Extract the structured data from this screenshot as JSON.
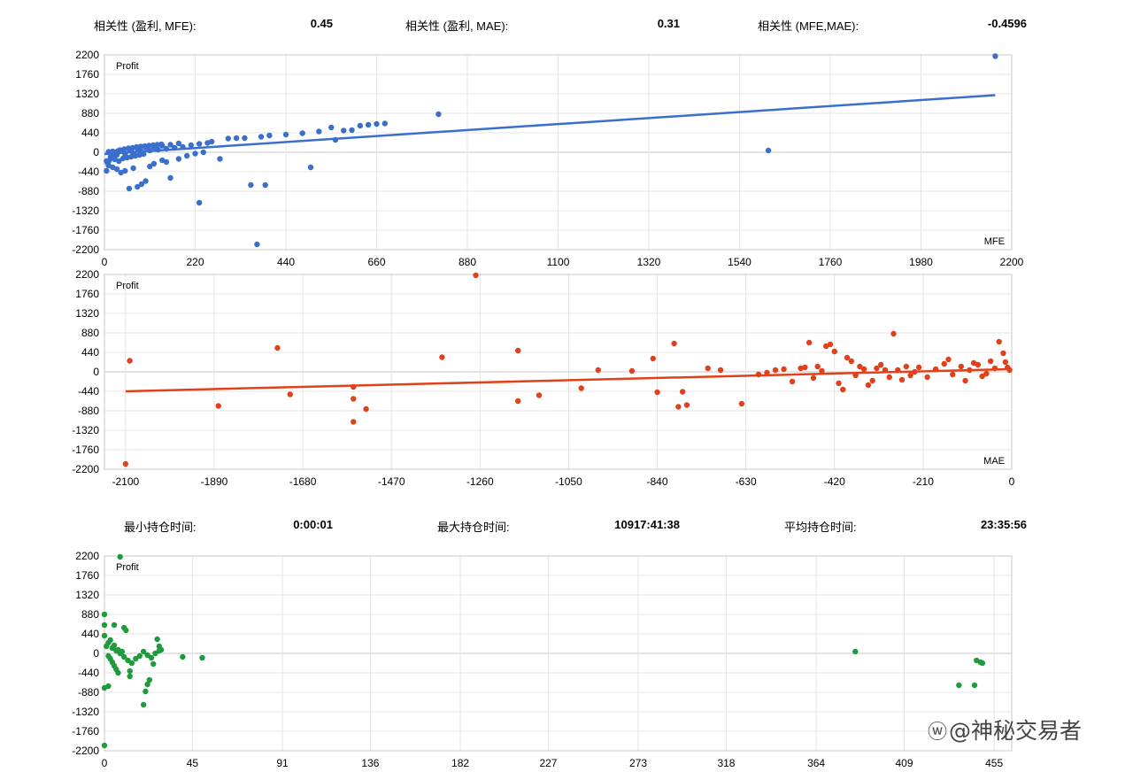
{
  "stats_top": [
    {
      "label": "相关性 (盈利, MFE):",
      "value": "0.45"
    },
    {
      "label": "相关性 (盈利, MAE):",
      "value": "0.31"
    },
    {
      "label": "相关性 (MFE,MAE):",
      "value": "-0.4596"
    }
  ],
  "stats_bottom": [
    {
      "label": "最小持仓时间:",
      "value": "0:00:01"
    },
    {
      "label": "最大持仓时间:",
      "value": "10917:41:38"
    },
    {
      "label": "平均持仓时间:",
      "value": "23:35:56"
    }
  ],
  "watermark": {
    "icon": "weibo-icon",
    "text": "@神秘交易者"
  },
  "chart_data": [
    {
      "type": "scatter",
      "ylabel": "Profit",
      "xlabel": "MFE",
      "color": "#3a6fcd",
      "xlim": [
        0,
        2200
      ],
      "ylim": [
        -2200,
        2200
      ],
      "x_ticks": [
        0,
        220,
        440,
        660,
        880,
        1100,
        1320,
        1540,
        1760,
        1980,
        2200
      ],
      "y_ticks": [
        2200,
        1760,
        1320,
        880,
        440,
        0,
        -440,
        -880,
        -1320,
        -1760,
        -2200
      ],
      "grid": true,
      "trendline": {
        "x": [
          0,
          2160
        ],
        "y": [
          -40,
          1290
        ]
      },
      "points": [
        [
          2160,
          2170
        ],
        [
          810,
          860
        ],
        [
          1610,
          40
        ],
        [
          370,
          -2080
        ],
        [
          230,
          -1140
        ],
        [
          355,
          -740
        ],
        [
          390,
          -740
        ],
        [
          500,
          -340
        ],
        [
          60,
          -820
        ],
        [
          80,
          -780
        ],
        [
          90,
          -720
        ],
        [
          100,
          -650
        ],
        [
          160,
          -580
        ],
        [
          40,
          -460
        ],
        [
          30,
          -380
        ],
        [
          20,
          -340
        ],
        [
          10,
          -300
        ],
        [
          5,
          -420
        ],
        [
          120,
          -260
        ],
        [
          150,
          -220
        ],
        [
          180,
          -150
        ],
        [
          140,
          -180
        ],
        [
          70,
          -360
        ],
        [
          110,
          -320
        ],
        [
          50,
          -420
        ],
        [
          200,
          -80
        ],
        [
          220,
          -30
        ],
        [
          240,
          0
        ],
        [
          280,
          -150
        ],
        [
          300,
          310
        ],
        [
          320,
          320
        ],
        [
          340,
          320
        ],
        [
          380,
          350
        ],
        [
          400,
          380
        ],
        [
          440,
          400
        ],
        [
          480,
          430
        ],
        [
          520,
          470
        ],
        [
          550,
          560
        ],
        [
          560,
          280
        ],
        [
          580,
          490
        ],
        [
          600,
          500
        ],
        [
          620,
          600
        ],
        [
          640,
          620
        ],
        [
          660,
          640
        ],
        [
          680,
          650
        ],
        [
          230,
          190
        ],
        [
          250,
          210
        ],
        [
          260,
          240
        ],
        [
          180,
          200
        ],
        [
          160,
          170
        ],
        [
          140,
          150
        ],
        [
          120,
          120
        ],
        [
          100,
          110
        ],
        [
          80,
          80
        ],
        [
          60,
          60
        ],
        [
          40,
          40
        ],
        [
          20,
          20
        ],
        [
          10,
          10
        ],
        [
          30,
          -60
        ],
        [
          50,
          -40
        ],
        [
          70,
          -20
        ],
        [
          90,
          20
        ],
        [
          110,
          40
        ],
        [
          130,
          60
        ],
        [
          150,
          80
        ],
        [
          170,
          100
        ],
        [
          190,
          120
        ],
        [
          210,
          160
        ],
        [
          15,
          -100
        ],
        [
          25,
          -160
        ],
        [
          35,
          -200
        ],
        [
          45,
          -140
        ],
        [
          55,
          -120
        ],
        [
          65,
          -100
        ],
        [
          75,
          -80
        ],
        [
          85,
          -60
        ],
        [
          95,
          -40
        ],
        [
          5,
          -200
        ],
        [
          8,
          -250
        ],
        [
          12,
          -180
        ],
        [
          18,
          -90
        ],
        [
          22,
          -50
        ],
        [
          28,
          0
        ],
        [
          33,
          30
        ],
        [
          38,
          50
        ],
        [
          48,
          70
        ],
        [
          58,
          90
        ],
        [
          68,
          100
        ],
        [
          78,
          120
        ],
        [
          88,
          130
        ],
        [
          98,
          140
        ],
        [
          108,
          150
        ],
        [
          118,
          160
        ],
        [
          128,
          170
        ],
        [
          138,
          180
        ]
      ]
    },
    {
      "type": "scatter",
      "ylabel": "Profit",
      "xlabel": "MAE",
      "color": "#e0411c",
      "xlim": [
        -2150,
        0
      ],
      "ylim": [
        -2200,
        2200
      ],
      "x_ticks": [
        -2100,
        -1890,
        -1680,
        -1470,
        -1260,
        -1050,
        -840,
        -630,
        -420,
        -210,
        0
      ],
      "y_ticks": [
        2200,
        1760,
        1320,
        880,
        440,
        0,
        -440,
        -880,
        -1320,
        -1760,
        -2200
      ],
      "grid": true,
      "trendline": {
        "x": [
          -2100,
          -10
        ],
        "y": [
          -440,
          60
        ]
      },
      "points": [
        [
          -2100,
          -2080
        ],
        [
          -2090,
          250
        ],
        [
          -1880,
          -770
        ],
        [
          -1740,
          540
        ],
        [
          -1710,
          -510
        ],
        [
          -1560,
          -1130
        ],
        [
          -1560,
          -340
        ],
        [
          -1560,
          -610
        ],
        [
          -1530,
          -840
        ],
        [
          -1350,
          330
        ],
        [
          -1270,
          2180
        ],
        [
          -1170,
          480
        ],
        [
          -1170,
          -660
        ],
        [
          -1120,
          -530
        ],
        [
          -1020,
          -370
        ],
        [
          -980,
          40
        ],
        [
          -900,
          20
        ],
        [
          -850,
          300
        ],
        [
          -840,
          -460
        ],
        [
          -800,
          640
        ],
        [
          -790,
          -790
        ],
        [
          -780,
          -450
        ],
        [
          -770,
          -750
        ],
        [
          -720,
          80
        ],
        [
          -690,
          40
        ],
        [
          -640,
          -720
        ],
        [
          -600,
          -60
        ],
        [
          -560,
          40
        ],
        [
          -500,
          80
        ],
        [
          -480,
          660
        ],
        [
          -460,
          120
        ],
        [
          -440,
          580
        ],
        [
          -430,
          620
        ],
        [
          -420,
          460
        ],
        [
          -400,
          -400
        ],
        [
          -380,
          240
        ],
        [
          -360,
          120
        ],
        [
          -340,
          -300
        ],
        [
          -320,
          80
        ],
        [
          -300,
          40
        ],
        [
          -280,
          860
        ],
        [
          -260,
          -180
        ],
        [
          -240,
          -80
        ],
        [
          -220,
          100
        ],
        [
          -200,
          -120
        ],
        [
          -180,
          60
        ],
        [
          -160,
          180
        ],
        [
          -140,
          -60
        ],
        [
          -120,
          120
        ],
        [
          -100,
          40
        ],
        [
          -80,
          160
        ],
        [
          -60,
          -40
        ],
        [
          -40,
          80
        ],
        [
          -30,
          680
        ],
        [
          -20,
          420
        ],
        [
          -15,
          220
        ],
        [
          -10,
          100
        ],
        [
          -5,
          40
        ],
        [
          -150,
          280
        ],
        [
          -110,
          -200
        ],
        [
          -90,
          200
        ],
        [
          -70,
          -100
        ],
        [
          -50,
          240
        ],
        [
          -250,
          120
        ],
        [
          -230,
          0
        ],
        [
          -270,
          40
        ],
        [
          -290,
          -120
        ],
        [
          -310,
          160
        ],
        [
          -330,
          -200
        ],
        [
          -350,
          60
        ],
        [
          -370,
          -80
        ],
        [
          -390,
          320
        ],
        [
          -410,
          -260
        ],
        [
          -450,
          20
        ],
        [
          -470,
          -140
        ],
        [
          -490,
          100
        ],
        [
          -520,
          -220
        ],
        [
          -540,
          60
        ],
        [
          -580,
          -20
        ]
      ]
    },
    {
      "type": "scatter",
      "ylabel": "Profit",
      "xlabel": "",
      "color": "#1f9a3c",
      "xlim": [
        0,
        464
      ],
      "ylim": [
        -2200,
        2200
      ],
      "x_ticks": [
        0,
        45,
        91,
        136,
        182,
        227,
        273,
        318,
        364,
        409,
        455
      ],
      "y_ticks": [
        2200,
        1760,
        1320,
        880,
        440,
        0,
        -440,
        -880,
        -1320,
        -1760,
        -2200
      ],
      "grid": true,
      "points": [
        [
          8,
          2180
        ],
        [
          0,
          880
        ],
        [
          0,
          -2080
        ],
        [
          0,
          -780
        ],
        [
          2,
          -740
        ],
        [
          0,
          640
        ],
        [
          5,
          640
        ],
        [
          0,
          400
        ],
        [
          2,
          240
        ],
        [
          4,
          120
        ],
        [
          6,
          60
        ],
        [
          8,
          0
        ],
        [
          10,
          -80
        ],
        [
          12,
          -160
        ],
        [
          14,
          -220
        ],
        [
          16,
          -120
        ],
        [
          18,
          -60
        ],
        [
          20,
          40
        ],
        [
          22,
          -40
        ],
        [
          24,
          -100
        ],
        [
          26,
          0
        ],
        [
          28,
          60
        ],
        [
          10,
          580
        ],
        [
          11,
          520
        ],
        [
          13,
          -400
        ],
        [
          13,
          -520
        ],
        [
          20,
          -1160
        ],
        [
          21,
          -860
        ],
        [
          22,
          -700
        ],
        [
          23,
          -600
        ],
        [
          25,
          -240
        ],
        [
          27,
          320
        ],
        [
          28,
          160
        ],
        [
          29,
          80
        ],
        [
          40,
          -80
        ],
        [
          50,
          -100
        ],
        [
          2,
          -60
        ],
        [
          3,
          -120
        ],
        [
          4,
          -200
        ],
        [
          5,
          -280
        ],
        [
          6,
          -360
        ],
        [
          7,
          -440
        ],
        [
          1,
          160
        ],
        [
          3,
          300
        ],
        [
          5,
          180
        ],
        [
          7,
          80
        ],
        [
          9,
          40
        ],
        [
          384,
          40
        ],
        [
          437,
          -720
        ],
        [
          445,
          -720
        ],
        [
          446,
          -160
        ],
        [
          448,
          -200
        ],
        [
          449,
          -220
        ]
      ]
    }
  ]
}
